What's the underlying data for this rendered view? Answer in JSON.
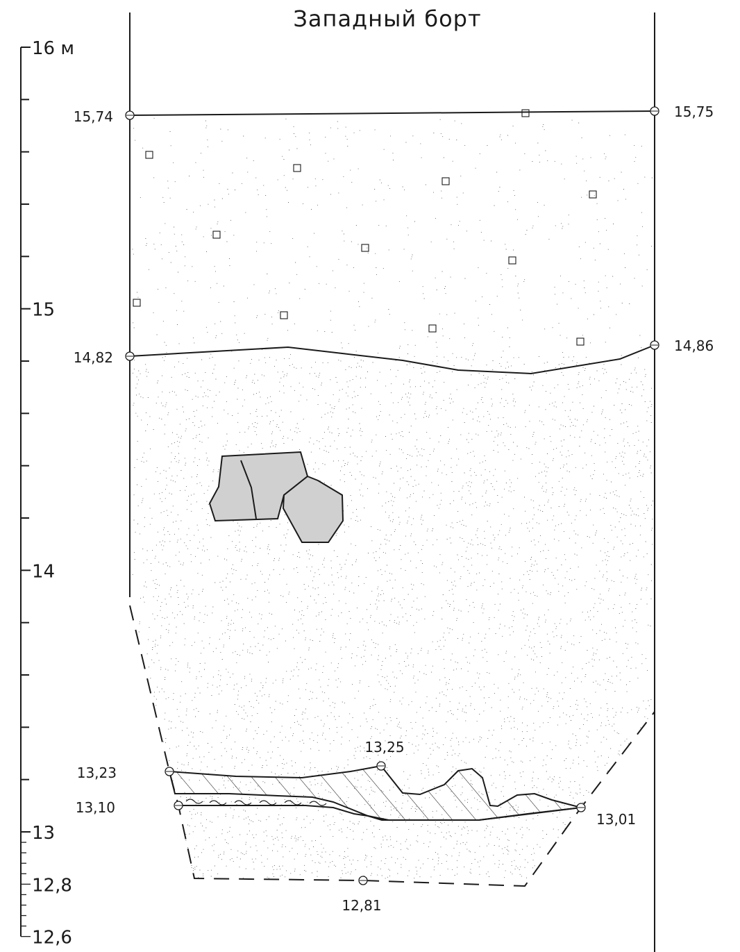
{
  "title": "Западный борт",
  "scale": {
    "labels": [
      {
        "text": "16 м",
        "value": 16
      },
      {
        "text": "15",
        "value": 15
      },
      {
        "text": "14",
        "value": 14
      },
      {
        "text": "13",
        "value": 13
      },
      {
        "text": "12,8",
        "value": 12.8
      },
      {
        "text": "12,6",
        "value": 12.6
      }
    ]
  },
  "elevations": {
    "top_left": "15,74",
    "top_right": "15,75",
    "mid_left": "14,82",
    "mid_right": "14,86",
    "lens_top": "13,25",
    "lens_left_upper": "13,23",
    "lens_left_lower": "13,10",
    "lens_right": "13,01",
    "pit_bottom": "12,81"
  },
  "colors": {
    "line": "#1a1a1a",
    "stone_fill": "#d0d0d0",
    "background": "#ffffff"
  }
}
